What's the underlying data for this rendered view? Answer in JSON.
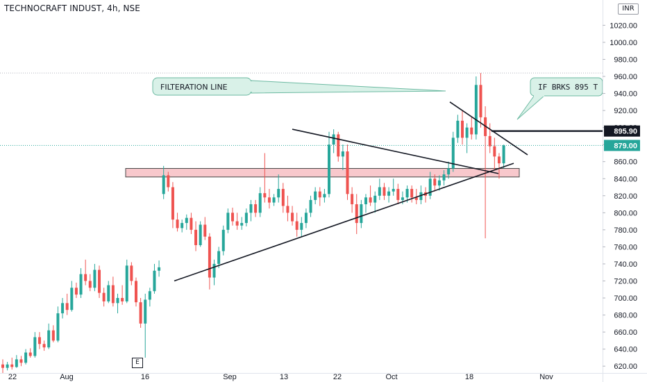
{
  "header": {
    "title": "TECHNOCRAFT INDUST, 4h, NSE",
    "currency": "INR"
  },
  "event_marker": "E",
  "colors": {
    "up": "#26a69a",
    "down": "#ef5350",
    "zone_fill": "#f8c8cc",
    "callout_fill": "#d9f1e8",
    "callout_border": "#6bb9a1"
  },
  "chart_data": {
    "type": "candlestick",
    "symbol": "TECHNOCRAFT INDUST",
    "interval": "4h",
    "exchange": "NSE",
    "currency": "INR",
    "ylim": [
      612,
      1035
    ],
    "yticks": [
      "620.00",
      "640.00",
      "660.00",
      "680.00",
      "700.00",
      "720.00",
      "740.00",
      "760.00",
      "780.00",
      "800.00",
      "820.00",
      "840.00",
      "860.00",
      "880.00",
      "900.00",
      "920.00",
      "940.00",
      "960.00",
      "980.00",
      "1000.00",
      "1020.00"
    ],
    "xticks": [
      "22",
      "Aug",
      "16",
      "Sep",
      "13",
      "22",
      "Oct",
      "18",
      "Nov"
    ],
    "last_price": "879.00",
    "level_price": "895.90",
    "support_zone": [
      842,
      852
    ],
    "annotations": [
      {
        "text": "FILTERATION LINE"
      },
      {
        "text": "IF BRKS 895 T"
      }
    ],
    "candles": [
      [
        622,
        628,
        612,
        618
      ],
      [
        618,
        625,
        615,
        622
      ],
      [
        622,
        630,
        616,
        619
      ],
      [
        619,
        633,
        618,
        628
      ],
      [
        628,
        632,
        620,
        624
      ],
      [
        624,
        640,
        622,
        636
      ],
      [
        636,
        641,
        630,
        632
      ],
      [
        632,
        660,
        630,
        654
      ],
      [
        654,
        660,
        640,
        646
      ],
      [
        646,
        650,
        638,
        642
      ],
      [
        642,
        670,
        640,
        662
      ],
      [
        662,
        668,
        648,
        650
      ],
      [
        650,
        690,
        648,
        682
      ],
      [
        682,
        700,
        676,
        694
      ],
      [
        694,
        705,
        680,
        686
      ],
      [
        686,
        720,
        684,
        712
      ],
      [
        712,
        718,
        700,
        704
      ],
      [
        704,
        735,
        700,
        728
      ],
      [
        728,
        745,
        715,
        720
      ],
      [
        720,
        728,
        708,
        712
      ],
      [
        712,
        740,
        708,
        733
      ],
      [
        733,
        738,
        700,
        706
      ],
      [
        706,
        712,
        690,
        696
      ],
      [
        696,
        720,
        694,
        715
      ],
      [
        715,
        725,
        690,
        694
      ],
      [
        694,
        705,
        682,
        700
      ],
      [
        700,
        715,
        692,
        696
      ],
      [
        696,
        745,
        694,
        738
      ],
      [
        738,
        742,
        715,
        720
      ],
      [
        720,
        724,
        690,
        695
      ],
      [
        695,
        700,
        665,
        670
      ],
      [
        670,
        705,
        630,
        698
      ],
      [
        698,
        712,
        690,
        708
      ],
      [
        708,
        740,
        705,
        732
      ],
      [
        732,
        744,
        725,
        736
      ],
      [
        822,
        855,
        816,
        844
      ],
      [
        844,
        848,
        825,
        830
      ],
      [
        830,
        836,
        782,
        792
      ],
      [
        792,
        800,
        778,
        782
      ],
      [
        782,
        792,
        777,
        788
      ],
      [
        788,
        798,
        780,
        794
      ],
      [
        794,
        800,
        775,
        780
      ],
      [
        780,
        790,
        755,
        762
      ],
      [
        762,
        790,
        760,
        786
      ],
      [
        786,
        795,
        768,
        772
      ],
      [
        772,
        776,
        710,
        724
      ],
      [
        724,
        745,
        715,
        740
      ],
      [
        740,
        760,
        735,
        755
      ],
      [
        755,
        785,
        750,
        780
      ],
      [
        780,
        805,
        776,
        800
      ],
      [
        800,
        806,
        785,
        790
      ],
      [
        790,
        800,
        780,
        785
      ],
      [
        785,
        795,
        780,
        788
      ],
      [
        788,
        805,
        784,
        800
      ],
      [
        800,
        815,
        790,
        810
      ],
      [
        810,
        815,
        795,
        800
      ],
      [
        800,
        830,
        795,
        823
      ],
      [
        823,
        870,
        812,
        818
      ],
      [
        818,
        828,
        805,
        812
      ],
      [
        812,
        822,
        808,
        818
      ],
      [
        818,
        845,
        812,
        828
      ],
      [
        828,
        835,
        800,
        808
      ],
      [
        808,
        820,
        790,
        800
      ],
      [
        800,
        808,
        785,
        790
      ],
      [
        790,
        800,
        772,
        780
      ],
      [
        780,
        795,
        772,
        788
      ],
      [
        788,
        805,
        782,
        800
      ],
      [
        800,
        820,
        795,
        815
      ],
      [
        815,
        830,
        810,
        825
      ],
      [
        825,
        830,
        808,
        818
      ],
      [
        818,
        828,
        812,
        822
      ],
      [
        822,
        895,
        818,
        880
      ],
      [
        880,
        898,
        870,
        892
      ],
      [
        892,
        895,
        860,
        866
      ],
      [
        866,
        880,
        850,
        872
      ],
      [
        872,
        880,
        815,
        822
      ],
      [
        822,
        830,
        800,
        810
      ],
      [
        810,
        822,
        775,
        788
      ],
      [
        788,
        815,
        782,
        810
      ],
      [
        810,
        822,
        800,
        818
      ],
      [
        818,
        832,
        808,
        812
      ],
      [
        812,
        825,
        800,
        820
      ],
      [
        820,
        840,
        815,
        830
      ],
      [
        830,
        835,
        815,
        820
      ],
      [
        820,
        830,
        812,
        825
      ],
      [
        825,
        840,
        820,
        828
      ],
      [
        828,
        834,
        810,
        815
      ],
      [
        815,
        825,
        810,
        818
      ],
      [
        818,
        832,
        812,
        828
      ],
      [
        828,
        832,
        812,
        818
      ],
      [
        818,
        828,
        810,
        815
      ],
      [
        815,
        832,
        810,
        824
      ],
      [
        824,
        830,
        812,
        820
      ],
      [
        820,
        848,
        816,
        840
      ],
      [
        840,
        845,
        825,
        832
      ],
      [
        832,
        844,
        826,
        838
      ],
      [
        838,
        850,
        832,
        845
      ],
      [
        845,
        860,
        840,
        852
      ],
      [
        852,
        895,
        848,
        888
      ],
      [
        888,
        915,
        882,
        908
      ],
      [
        908,
        920,
        880,
        888
      ],
      [
        888,
        905,
        870,
        900
      ],
      [
        900,
        912,
        886,
        892
      ],
      [
        892,
        960,
        886,
        950
      ],
      [
        950,
        964,
        900,
        912
      ],
      [
        912,
        925,
        770,
        890
      ],
      [
        890,
        905,
        870,
        878
      ],
      [
        878,
        888,
        850,
        866
      ],
      [
        866,
        870,
        840,
        858
      ],
      [
        858,
        880,
        852,
        879
      ]
    ]
  }
}
